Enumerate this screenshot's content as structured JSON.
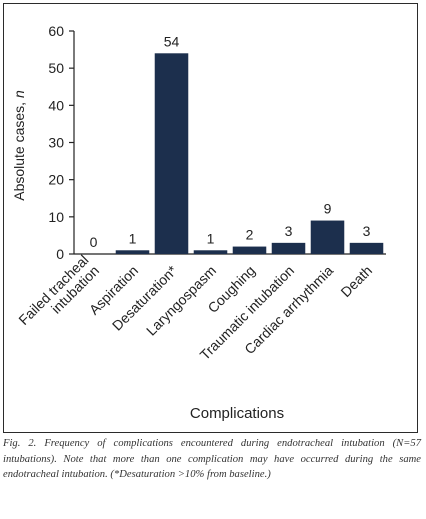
{
  "chart_data": {
    "type": "bar",
    "categories": [
      [
        "Failed tracheal",
        "intubation"
      ],
      [
        "Aspiration"
      ],
      [
        "Desaturation*"
      ],
      [
        "Laryngospasm"
      ],
      [
        "Coughing"
      ],
      [
        "Traumatic intubation"
      ],
      [
        "Cardiac arrhythmia"
      ],
      [
        "Death"
      ]
    ],
    "values": [
      0,
      1,
      54,
      1,
      2,
      3,
      9,
      3
    ],
    "data_labels": [
      "0",
      "1",
      "54",
      "1",
      "2",
      "3",
      "9",
      "3"
    ],
    "ylabel": "Absolute cases, ",
    "ylabel_italic": "n",
    "xlabel": "Complications",
    "ylim": [
      0,
      60
    ],
    "yticks": [
      0,
      10,
      20,
      30,
      40,
      50,
      60
    ],
    "bar_color": "#1c2f4d",
    "grid": false
  },
  "caption": "Fig. 2. Frequency of complications encountered during endotracheal intubation (N=57 intubations). Note that more than one complication may have occurred during the same endotracheal intubation. (*Desaturation >10% from baseline.)"
}
